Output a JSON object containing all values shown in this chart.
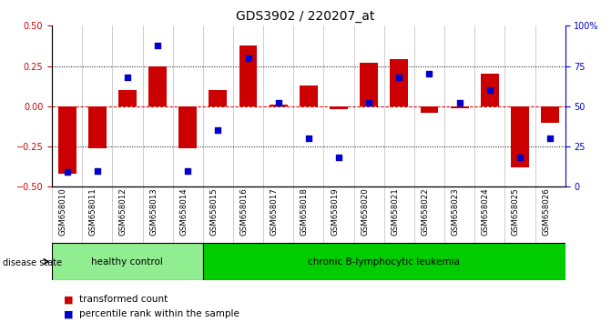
{
  "title": "GDS3902 / 220207_at",
  "samples": [
    "GSM658010",
    "GSM658011",
    "GSM658012",
    "GSM658013",
    "GSM658014",
    "GSM658015",
    "GSM658016",
    "GSM658017",
    "GSM658018",
    "GSM658019",
    "GSM658020",
    "GSM658021",
    "GSM658022",
    "GSM658023",
    "GSM658024",
    "GSM658025",
    "GSM658026"
  ],
  "red_values": [
    -0.42,
    -0.26,
    0.1,
    0.25,
    -0.26,
    0.1,
    0.38,
    0.01,
    0.13,
    -0.02,
    0.27,
    0.29,
    -0.04,
    -0.01,
    0.2,
    -0.38,
    -0.1
  ],
  "blue_values": [
    9,
    10,
    68,
    88,
    10,
    35,
    80,
    52,
    30,
    18,
    52,
    68,
    70,
    52,
    60,
    18,
    30
  ],
  "healthy_control_count": 5,
  "ylim_left": [
    -0.5,
    0.5
  ],
  "ylim_right": [
    0,
    100
  ],
  "yticks_left": [
    -0.5,
    -0.25,
    0,
    0.25,
    0.5
  ],
  "yticks_right": [
    0,
    25,
    50,
    75,
    100
  ],
  "red_color": "#CC0000",
  "blue_color": "#0000CC",
  "healthy_color": "#90EE90",
  "leukemia_color": "#00CC00",
  "hline_color": "#CC0000",
  "bg_color": "#FFFFFF",
  "title_fontsize": 10,
  "tick_fontsize": 7,
  "label_fontsize": 7,
  "bar_width": 0.6
}
